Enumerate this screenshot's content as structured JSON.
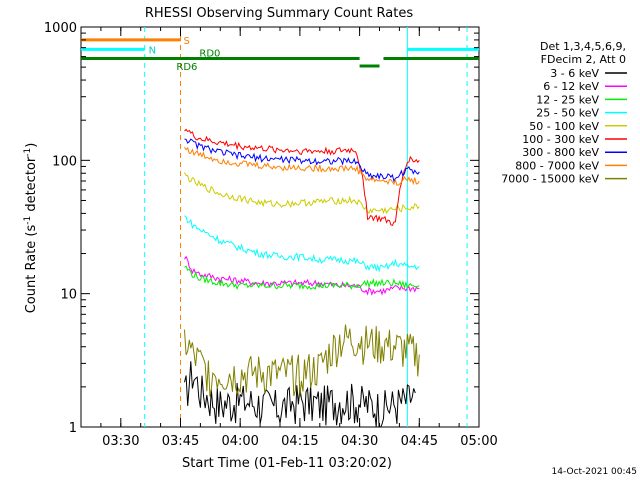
{
  "chart_data": {
    "type": "line",
    "title": "RHESSI Observing Summary Count Rates",
    "xlabel": "Start Time (01-Feb-11 03:20:02)",
    "ylabel": "Count Rate (s⁻¹ detector⁻¹)",
    "ylabel_parts": {
      "main": "Count Rate (s",
      "exp1": "-1",
      "mid": " detector",
      "exp2": "-1",
      "end": ")"
    },
    "yscale": "log",
    "ylim": [
      1,
      1000
    ],
    "y_ticks": [
      1,
      10,
      100,
      1000
    ],
    "y_tick_labels": [
      "1",
      "10",
      "100",
      "1000"
    ],
    "xlim": [
      "03:20",
      "05:00"
    ],
    "x_ticks": [
      "03:30",
      "03:45",
      "04:00",
      "04:15",
      "04:30",
      "04:45",
      "05:00"
    ],
    "legend_header": [
      "Det 1,3,4,5,6,9,",
      "FDecim 2, Att 0"
    ],
    "legend_placement": "right",
    "series": [
      {
        "name": "3 - 6 keV",
        "color": "#000000",
        "x": [
          "03:46",
          "03:48",
          "03:50",
          "03:52",
          "03:55",
          "04:00",
          "04:05",
          "04:10",
          "04:15",
          "04:20",
          "04:25",
          "04:28",
          "04:32",
          "04:36",
          "04:39",
          "04:42",
          "04:44"
        ],
        "values": [
          1.7,
          2.6,
          1.9,
          1.7,
          1.5,
          1.6,
          1.5,
          1.4,
          1.6,
          1.5,
          1.6,
          1.6,
          1.5,
          1.4,
          1.5,
          1.6,
          1.8
        ]
      },
      {
        "name": "6 - 12 keV",
        "color": "#ff00ff",
        "x": [
          "03:46",
          "03:48",
          "03:50",
          "03:55",
          "04:00",
          "04:05",
          "04:10",
          "04:15",
          "04:20",
          "04:25",
          "04:29",
          "04:32",
          "04:36",
          "04:39",
          "04:42",
          "04:45"
        ],
        "values": [
          19,
          15,
          14,
          13,
          12.5,
          12,
          12,
          12,
          12,
          11.5,
          11.5,
          10.5,
          10.5,
          11,
          11,
          11
        ]
      },
      {
        "name": "12 - 25 keV",
        "color": "#00ee00",
        "x": [
          "03:46",
          "03:48",
          "03:50",
          "03:55",
          "04:00",
          "04:05",
          "04:10",
          "04:15",
          "04:20",
          "04:25",
          "04:29",
          "04:32",
          "04:36",
          "04:39",
          "04:42",
          "04:45"
        ],
        "values": [
          16,
          14,
          13,
          12,
          11.5,
          11.5,
          11.5,
          11.5,
          11.5,
          11.5,
          11.5,
          12,
          12,
          12,
          11.5,
          11.5
        ]
      },
      {
        "name": "25 - 50 keV",
        "color": "#00ffff",
        "x": [
          "03:46",
          "03:48",
          "03:50",
          "03:55",
          "04:00",
          "04:05",
          "04:10",
          "04:15",
          "04:20",
          "04:25",
          "04:29",
          "04:32",
          "04:36",
          "04:39",
          "04:42",
          "04:45"
        ],
        "values": [
          38,
          33,
          30,
          25,
          22,
          20,
          19,
          19,
          18,
          18,
          17.5,
          16,
          15.5,
          17,
          16,
          16
        ]
      },
      {
        "name": "50 - 100 keV",
        "color": "#cccc00",
        "x": [
          "03:46",
          "03:48",
          "03:50",
          "03:55",
          "04:00",
          "04:05",
          "04:10",
          "04:15",
          "04:20",
          "04:25",
          "04:29",
          "04:32",
          "04:36",
          "04:39",
          "04:42",
          "04:45"
        ],
        "values": [
          78,
          70,
          65,
          56,
          52,
          48,
          47,
          48,
          49,
          50,
          50,
          42,
          42,
          43,
          44,
          45
        ]
      },
      {
        "name": "100 - 300 keV",
        "color": "#ff0000",
        "x": [
          "03:46",
          "03:48",
          "03:50",
          "03:55",
          "04:00",
          "04:05",
          "04:10",
          "04:15",
          "04:20",
          "04:25",
          "04:29",
          "04:32",
          "04:36",
          "04:39",
          "04:42",
          "04:45"
        ],
        "values": [
          175,
          155,
          145,
          135,
          128,
          123,
          120,
          118,
          117,
          118,
          120,
          38,
          36,
          33,
          102,
          100
        ]
      },
      {
        "name": "300 - 800 keV",
        "color": "#0000ff",
        "x": [
          "03:46",
          "03:48",
          "03:50",
          "03:55",
          "04:00",
          "04:05",
          "04:10",
          "04:15",
          "04:20",
          "04:25",
          "04:29",
          "04:32",
          "04:36",
          "04:39",
          "04:42",
          "04:45"
        ],
        "values": [
          148,
          135,
          127,
          115,
          108,
          104,
          102,
          100,
          99,
          99,
          98,
          78,
          76,
          74,
          85,
          82
        ]
      },
      {
        "name": "800 - 7000 keV",
        "color": "#ff7f00",
        "x": [
          "03:46",
          "03:48",
          "03:50",
          "03:55",
          "04:00",
          "04:05",
          "04:10",
          "04:15",
          "04:20",
          "04:25",
          "04:29",
          "04:32",
          "04:36",
          "04:39",
          "04:42",
          "04:45"
        ],
        "values": [
          125,
          115,
          110,
          100,
          95,
          91,
          89,
          88,
          87,
          87,
          87,
          72,
          70,
          68,
          72,
          70
        ]
      },
      {
        "name": "7000 - 15000 keV",
        "color": "#808000",
        "x": [
          "03:46",
          "03:48",
          "03:50",
          "03:52",
          "03:55",
          "04:00",
          "04:05",
          "04:10",
          "04:15",
          "04:20",
          "04:25",
          "04:29",
          "04:32",
          "04:36",
          "04:39",
          "04:42",
          "04:45"
        ],
        "values": [
          4.5,
          3.5,
          3.0,
          2.6,
          2.5,
          2.5,
          2.6,
          2.5,
          2.6,
          2.8,
          4.5,
          4.6,
          4.3,
          4.2,
          4.0,
          3.8,
          3.5
        ]
      }
    ],
    "flag_bars": [
      {
        "label": "S",
        "color": "#ff7f00",
        "value": 800,
        "segments": [
          [
            "03:20",
            "03:45"
          ]
        ]
      },
      {
        "label": "N",
        "color": "#00ffff",
        "value": 680,
        "segments": [
          [
            "03:20",
            "03:36"
          ],
          [
            "04:42",
            "05:00"
          ]
        ]
      },
      {
        "label": "RD0",
        "color": "#008000",
        "value": 580,
        "segments": [
          [
            "03:20",
            "04:30"
          ],
          [
            "04:36",
            "05:00"
          ]
        ]
      },
      {
        "label": "RD6",
        "color": "#008000",
        "value": 510,
        "segments": [
          [
            "04:30",
            "04:35"
          ]
        ]
      }
    ],
    "vertical_markers": [
      {
        "x": "03:36",
        "color": "#00ffff",
        "style": "dashed"
      },
      {
        "x": "03:45",
        "color": "#ff7f00",
        "style": "dashed"
      },
      {
        "x": "04:42",
        "color": "#00ffff",
        "style": "solid"
      },
      {
        "x": "04:57",
        "color": "#00ffff",
        "style": "dashed"
      }
    ],
    "grid": false
  },
  "footer_stamp": "14-Oct-2021 00:45"
}
